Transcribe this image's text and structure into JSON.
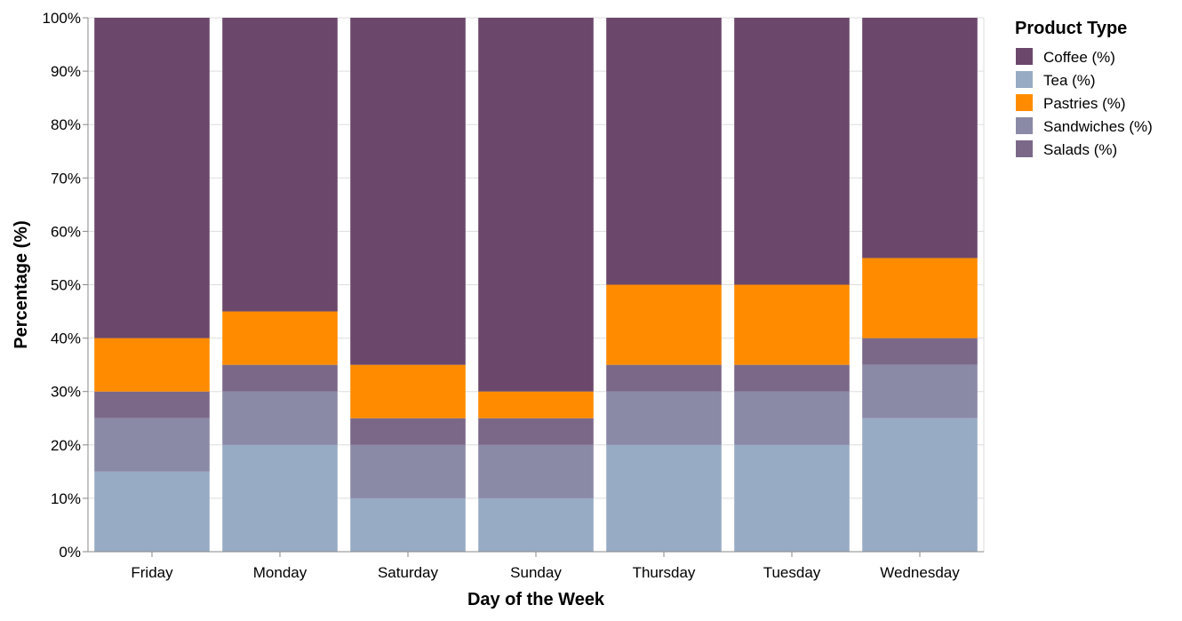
{
  "chart_data": {
    "type": "bar",
    "stacked": true,
    "normalized": true,
    "categories": [
      "Friday",
      "Monday",
      "Saturday",
      "Sunday",
      "Thursday",
      "Tuesday",
      "Wednesday"
    ],
    "series": [
      {
        "name": "Coffee (%)",
        "color": "#6b486b",
        "values": [
          60,
          55,
          65,
          70,
          50,
          50,
          45
        ]
      },
      {
        "name": "Tea (%)",
        "color": "#98abc5",
        "values": [
          15,
          20,
          10,
          10,
          20,
          20,
          25
        ]
      },
      {
        "name": "Pastries (%)",
        "color": "#ff8c00",
        "values": [
          10,
          10,
          10,
          5,
          15,
          15,
          15
        ]
      },
      {
        "name": "Sandwiches (%)",
        "color": "#8a89a6",
        "values": [
          10,
          10,
          10,
          10,
          10,
          10,
          10
        ]
      },
      {
        "name": "Salads (%)",
        "color": "#7b6888",
        "values": [
          5,
          5,
          5,
          5,
          5,
          5,
          5
        ]
      }
    ],
    "stack_order_bottom_to_top": [
      "Tea (%)",
      "Sandwiches (%)",
      "Salads (%)",
      "Pastries (%)",
      "Coffee (%)"
    ],
    "xlabel": "Day of the Week",
    "ylabel": "Percentage (%)",
    "ylim": [
      0,
      100
    ],
    "yticks": [
      "0%",
      "10%",
      "20%",
      "30%",
      "40%",
      "50%",
      "60%",
      "70%",
      "80%",
      "90%",
      "100%"
    ],
    "legend_title": "Product Type",
    "legend_position": "top-right",
    "grid": true
  }
}
